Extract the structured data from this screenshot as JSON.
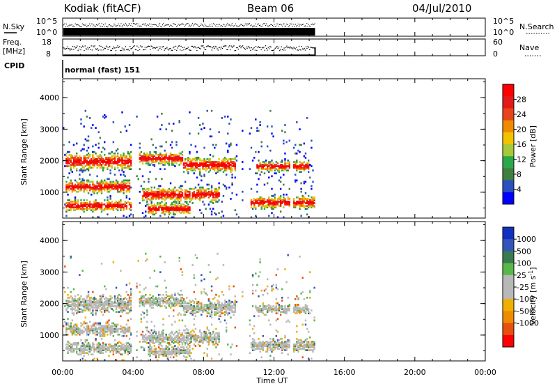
{
  "header": {
    "station": "Kodiak (fitACF)",
    "beam": "Beam 06",
    "date": "04/Jul/2010"
  },
  "nsky_panel": {
    "left_label": "N.Sky",
    "left_ticks": [
      "10^5",
      "10^0"
    ],
    "right_ticks": [
      "10^5",
      "10^0"
    ],
    "right_label": "N.Search"
  },
  "freq_panel": {
    "left_label_1": "Freq.",
    "left_label_2": "[MHz]",
    "left_ticks": [
      "18",
      "8"
    ],
    "right_ticks": [
      "60",
      "0"
    ],
    "right_label": "Nave"
  },
  "cpid": {
    "label": "CPID",
    "value": "normal (fast) 151"
  },
  "chart_data": [
    {
      "type": "heatmap",
      "name": "power",
      "ylabel": "Slant Range [km]",
      "ylim": [
        180,
        4600
      ],
      "yticks": [
        "1000",
        "2000",
        "3000",
        "4000"
      ],
      "xlim": [
        "00:00",
        "24:00"
      ],
      "data_time_range": [
        "00:00",
        "14:20"
      ],
      "colorbar": {
        "label": "Power [dB]",
        "tick_labels": [
          "4",
          "8",
          "12",
          "16",
          "20",
          "24",
          "28"
        ],
        "range": [
          0,
          30
        ],
        "colors": [
          "#0000ff",
          "#2a4fbf",
          "#3f7f3f",
          "#2ba84a",
          "#a6c93a",
          "#f2c200",
          "#f08a00",
          "#e8441c",
          "#e41a1a",
          "#ff0000"
        ]
      }
    },
    {
      "type": "heatmap",
      "name": "velocity",
      "ylabel": "Slant Range [km]",
      "ylim": [
        180,
        4600
      ],
      "yticks": [
        "1000",
        "2000",
        "3000",
        "4000"
      ],
      "xlim": [
        "00:00",
        "24:00"
      ],
      "data_time_range": [
        "00:00",
        "14:20"
      ],
      "colorbar": {
        "label": "Velocity [m s-1]",
        "tick_labels": [
          "1000",
          "500",
          "100",
          "25",
          "-25",
          "-100",
          "-500",
          "-1000"
        ],
        "colors": [
          "#1030c0",
          "#3355bb",
          "#3a7a50",
          "#58b848",
          "#b8b8b8",
          "#b8b8b8",
          "#f0b000",
          "#f08a00",
          "#e85010",
          "#ff0000"
        ]
      }
    }
  ],
  "x_axis": {
    "tick_labels": [
      "00:00",
      "04:00",
      "08:00",
      "12:00",
      "16:00",
      "20:00",
      "00:00"
    ],
    "label": "Time UT"
  }
}
